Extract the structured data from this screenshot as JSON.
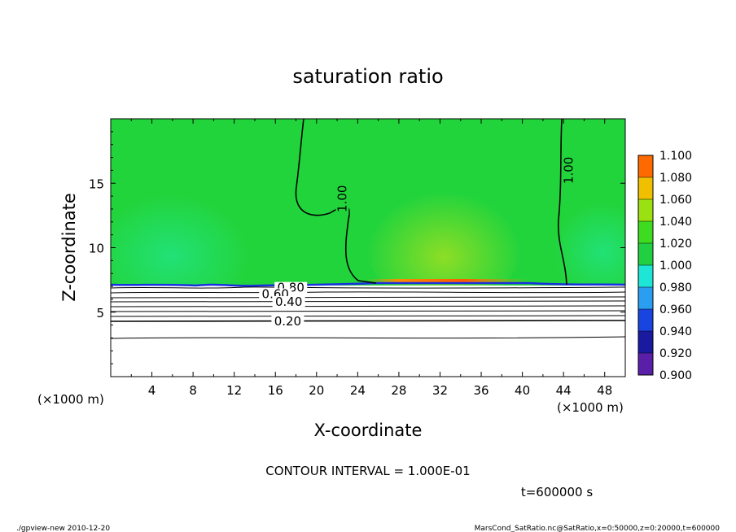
{
  "chart_data": {
    "type": "heatmap",
    "title": "saturation ratio",
    "xlabel": "X-coordinate",
    "ylabel": "Z-coordinate",
    "x_unit_left": "(×1000 m)",
    "x_unit_right": "(×1000 m)",
    "xlim": [
      0,
      50
    ],
    "ylim": [
      0,
      20
    ],
    "x_ticks": [
      4,
      8,
      12,
      16,
      20,
      24,
      28,
      32,
      36,
      40,
      44,
      48
    ],
    "y_ticks": [
      5,
      10,
      15
    ],
    "colorbar": {
      "levels": [
        "0.900",
        "0.920",
        "0.940",
        "0.960",
        "0.980",
        "1.000",
        "1.020",
        "1.040",
        "1.060",
        "1.080",
        "1.100"
      ],
      "colors": [
        "#5a1fa8",
        "#1a1aa0",
        "#1a44e0",
        "#2a9ef0",
        "#1ee6d6",
        "#20d040",
        "#3edc20",
        "#9be010",
        "#f0c000",
        "#ff6a00",
        "#ff9a9a"
      ]
    },
    "contour_labels": [
      {
        "text": "1.00",
        "x": 22.5,
        "y": 13.8
      },
      {
        "text": "1.00",
        "x": 44.5,
        "y": 16.0
      },
      {
        "text": "0.80",
        "x": 17.5,
        "y": 6.9
      },
      {
        "text": "0.60",
        "x": 16.0,
        "y": 6.4
      },
      {
        "text": "0.40",
        "x": 17.3,
        "y": 5.8
      },
      {
        "text": "0.20",
        "x": 17.2,
        "y": 4.3
      }
    ],
    "contour_interval": "CONTOUR INTERVAL = 1.000E-01",
    "time_label": "t=600000 s"
  },
  "footer": {
    "left": "./gpview-new   2010-12-20",
    "right": "MarsCond_SatRatio.nc@SatRatio,x=0:50000,z=0:20000,t=600000"
  }
}
